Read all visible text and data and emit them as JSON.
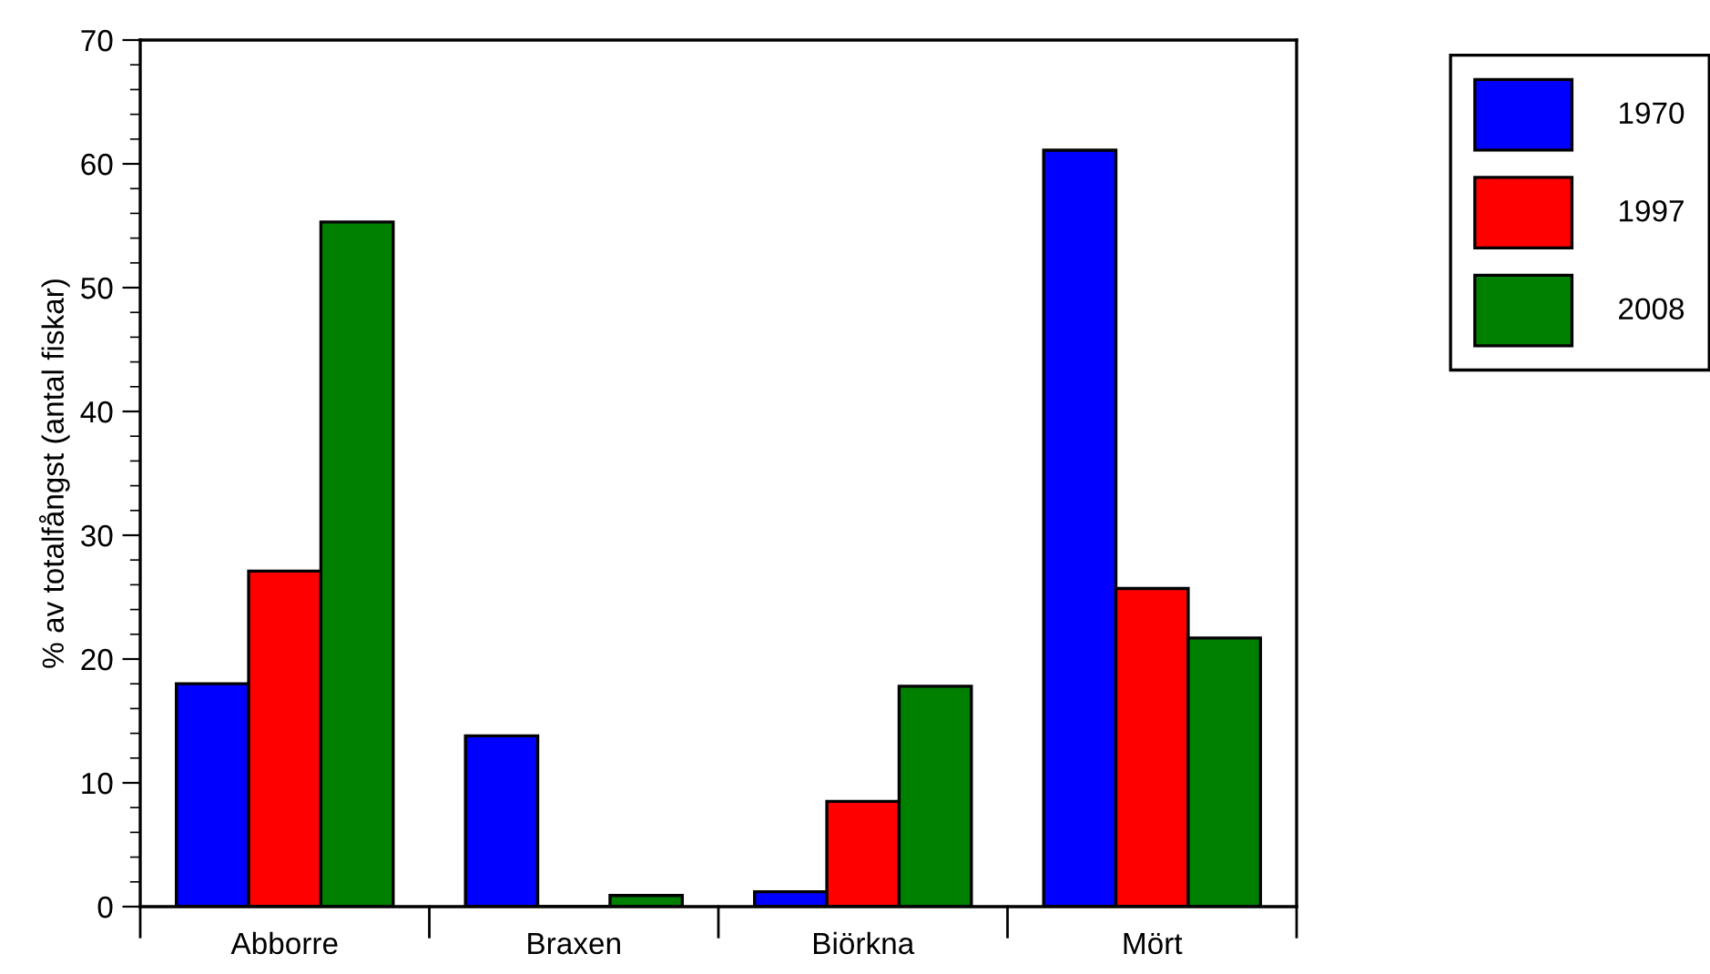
{
  "chart_data": {
    "type": "bar",
    "ylabel": "% av totalfångst (antal fiskar)",
    "categories": [
      "Abborre",
      "Braxen",
      "Biörkna",
      "Mört"
    ],
    "series": [
      {
        "name": "1970",
        "color": "#0000ff",
        "values": [
          18,
          13.8,
          1.2,
          61.1
        ]
      },
      {
        "name": "1997",
        "color": "#ff0000",
        "values": [
          27.1,
          0,
          8.5,
          25.7
        ]
      },
      {
        "name": "2008",
        "color": "#008000",
        "values": [
          55.3,
          0.9,
          17.8,
          21.7
        ]
      }
    ],
    "ylim": [
      0,
      70
    ],
    "yticks": [
      0,
      10,
      20,
      30,
      40,
      50,
      60,
      70
    ],
    "grid": false,
    "legend": "top right"
  }
}
